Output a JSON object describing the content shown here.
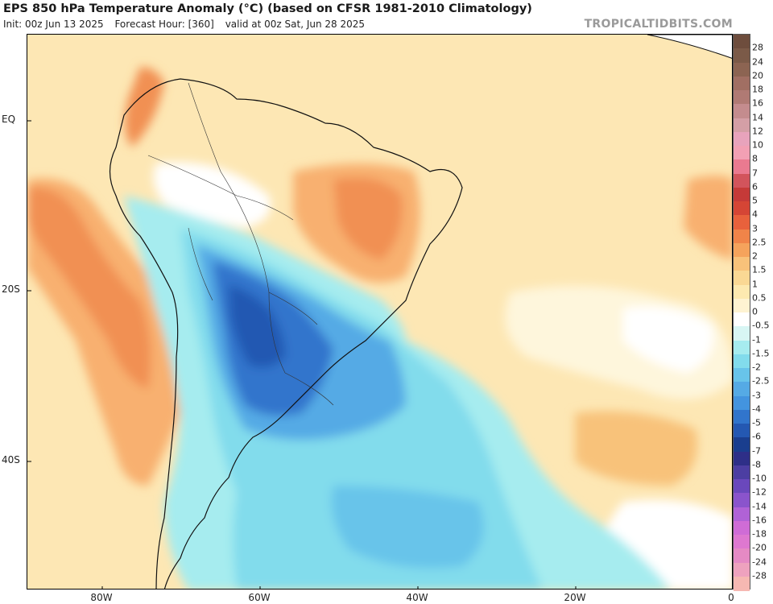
{
  "header": {
    "title": "EPS 850 hPa Temperature Anomaly (°C) (based on CFSR 1981-2010 Climatology)",
    "init": "Init: 00z Jun 13 2025",
    "forecast_hour": "Forecast Hour: [360]",
    "valid": "valid at 00z Sat, Jun 28 2025",
    "brand": "TROPICALTIDBITS.COM"
  },
  "axes": {
    "lat_labels": [
      "EQ",
      "20S",
      "40S"
    ],
    "lon_labels": [
      "80W",
      "60W",
      "40W",
      "20W",
      "0"
    ]
  },
  "colorbar": {
    "labels": [
      "28",
      "24",
      "20",
      "18",
      "16",
      "14",
      "12",
      "10",
      "8",
      "7",
      "6",
      "5",
      "4",
      "3",
      "2.5",
      "2",
      "1.5",
      "1",
      "0.5",
      "0",
      "-0.5",
      "-1",
      "-1.5",
      "-2",
      "-2.5",
      "-3",
      "-4",
      "-5",
      "-6",
      "-7",
      "-8",
      "-10",
      "-12",
      "-14",
      "-16",
      "-18",
      "-20",
      "-24",
      "-28"
    ],
    "colors": [
      "#7b5a48",
      "#8c6452",
      "#a16f63",
      "#b07a74",
      "#c48c8e",
      "#d49fa6",
      "#e8a3bc",
      "#f2a0b4",
      "#ea7a90",
      "#d2545c",
      "#c53a38",
      "#d54535",
      "#e8613c",
      "#f08449",
      "#f5a35c",
      "#f8c27a",
      "#fad894",
      "#fde9b0",
      "#fef3d2",
      "#ffffff",
      "#d8f6f4",
      "#a6ecef",
      "#82dcec",
      "#68c4ea",
      "#55aae5",
      "#4394df",
      "#3175cc",
      "#2458b2",
      "#1a3e8e",
      "#2e2f88",
      "#4c3ea2",
      "#6a48bc",
      "#8a54cc",
      "#b062d6",
      "#cf6cd6",
      "#de78d0",
      "#e58ac4",
      "#eea2be",
      "#f6b8b2"
    ]
  },
  "map": {
    "background_color": "#fdeec2",
    "land_color": "#fbe3a4"
  }
}
